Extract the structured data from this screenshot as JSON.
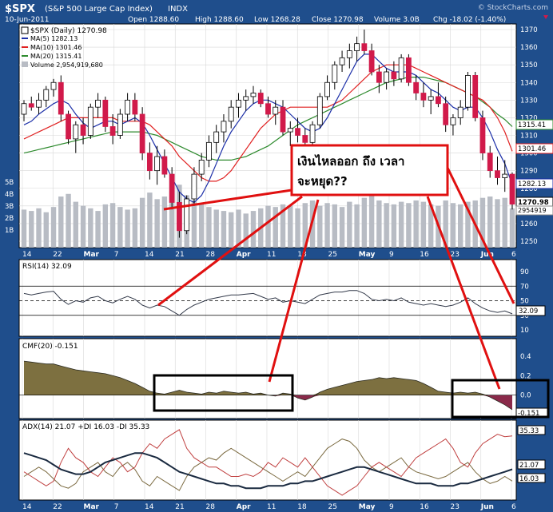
{
  "header": {
    "symbol": "$SPX",
    "name": "(S&P 500 Large Cap Index)",
    "exchange": "INDX",
    "watermark": "© StockCharts.com",
    "date": "10-Jun-2011",
    "open": "Open 1288.60",
    "high": "High 1288.60",
    "low": "Low 1268.28",
    "close": "Close 1270.98",
    "volume": "Volume 3.0B",
    "chg": "Chg -18.02 (-1.40%)"
  },
  "colors": {
    "frame": "#1f4e8c",
    "panel": "#ffffff",
    "up": "#ffffff",
    "down": "#d11a4a",
    "ma5": "#1c2fa8",
    "ma10": "#e02020",
    "ma20": "#2d8a2d",
    "volume": "#b8bcc4",
    "cmf": "#7d7040",
    "cmf_neg": "#8a2a4a",
    "adx": "#1a2a40",
    "plusdi": "#7b6a40",
    "minusdi": "#c04040",
    "annotation": "#e01010"
  },
  "main_legend": {
    "title": "$SPX (Daily) 1270.98",
    "ma5": "MA(5) 1282.13",
    "ma10": "MA(10) 1301.46",
    "ma20": "MA(20) 1315.41",
    "volume": "Volume 2,954,919,680"
  },
  "price_axis": [
    "1370",
    "1360",
    "1350",
    "1340",
    "1330",
    "1320",
    "1310",
    "1300",
    "1290",
    "1280",
    "1270",
    "1260",
    "1250"
  ],
  "volume_axis": [
    "5B",
    "4B",
    "3B",
    "2B",
    "1B"
  ],
  "price_badges": {
    "ma20": "1315.41",
    "ma10": "1301.46",
    "ma5": "1282.13",
    "close": "1270.98",
    "volume": "2954919"
  },
  "x_axis": [
    "14",
    "22",
    "Mar",
    "7",
    "14",
    "21",
    "28",
    "Apr",
    "11",
    "18",
    "25",
    "May",
    "9",
    "16",
    "23",
    "Jun",
    "6"
  ],
  "annotation": {
    "line1": "เงินไหลออก ถึง เวลา",
    "line2": "จะหยุด??"
  },
  "rsi": {
    "label": "RSI(14) 32.09",
    "axis": [
      "90",
      "70",
      "50",
      "30",
      "10"
    ],
    "badge": "32.09"
  },
  "cmf": {
    "label": "CMF(20) -0.151",
    "axis": [
      "0.4",
      "0.2",
      "0.0",
      "-0.2"
    ],
    "badge": "-0.151"
  },
  "adx": {
    "label": "ADX(14) 21.07 +DI 16.03 -DI 35.33",
    "axis": [
      "35.33",
      "21.07",
      "16.03"
    ]
  },
  "chart_data": {
    "type": "candlestick",
    "title": "$SPX (S&P 500 Large Cap Index) INDX",
    "x_ticks": [
      "14",
      "22",
      "Mar",
      "7",
      "14",
      "21",
      "28",
      "Apr",
      "11",
      "18",
      "25",
      "May",
      "9",
      "16",
      "23",
      "Jun",
      "6"
    ],
    "ohlc": [
      [
        1322,
        1330,
        1318,
        1328
      ],
      [
        1328,
        1332,
        1324,
        1326
      ],
      [
        1326,
        1334,
        1322,
        1330
      ],
      [
        1330,
        1338,
        1326,
        1336
      ],
      [
        1336,
        1342,
        1332,
        1340
      ],
      [
        1340,
        1344,
        1318,
        1322
      ],
      [
        1322,
        1324,
        1305,
        1308
      ],
      [
        1308,
        1318,
        1300,
        1316
      ],
      [
        1316,
        1320,
        1305,
        1310
      ],
      [
        1310,
        1328,
        1308,
        1326
      ],
      [
        1326,
        1334,
        1320,
        1330
      ],
      [
        1330,
        1332,
        1312,
        1315
      ],
      [
        1315,
        1322,
        1305,
        1310
      ],
      [
        1310,
        1325,
        1308,
        1322
      ],
      [
        1322,
        1334,
        1318,
        1330
      ],
      [
        1330,
        1334,
        1318,
        1322
      ],
      [
        1322,
        1326,
        1296,
        1300
      ],
      [
        1300,
        1306,
        1285,
        1290
      ],
      [
        1290,
        1304,
        1282,
        1298
      ],
      [
        1298,
        1302,
        1286,
        1288
      ],
      [
        1288,
        1292,
        1268,
        1272
      ],
      [
        1272,
        1278,
        1252,
        1256
      ],
      [
        1256,
        1276,
        1254,
        1274
      ],
      [
        1274,
        1292,
        1270,
        1288
      ],
      [
        1288,
        1300,
        1284,
        1296
      ],
      [
        1296,
        1310,
        1292,
        1306
      ],
      [
        1306,
        1316,
        1300,
        1312
      ],
      [
        1312,
        1322,
        1306,
        1318
      ],
      [
        1318,
        1330,
        1314,
        1326
      ],
      [
        1326,
        1334,
        1320,
        1330
      ],
      [
        1330,
        1336,
        1324,
        1332
      ],
      [
        1332,
        1338,
        1328,
        1334
      ],
      [
        1334,
        1336,
        1326,
        1328
      ],
      [
        1328,
        1332,
        1320,
        1322
      ],
      [
        1322,
        1330,
        1316,
        1326
      ],
      [
        1326,
        1330,
        1310,
        1312
      ],
      [
        1312,
        1318,
        1304,
        1314
      ],
      [
        1314,
        1320,
        1306,
        1310
      ],
      [
        1310,
        1314,
        1302,
        1306
      ],
      [
        1306,
        1318,
        1304,
        1316
      ],
      [
        1316,
        1334,
        1314,
        1332
      ],
      [
        1332,
        1344,
        1330,
        1340
      ],
      [
        1340,
        1352,
        1336,
        1350
      ],
      [
        1350,
        1358,
        1346,
        1354
      ],
      [
        1354,
        1362,
        1348,
        1358
      ],
      [
        1358,
        1366,
        1352,
        1362
      ],
      [
        1362,
        1370,
        1356,
        1358
      ],
      [
        1358,
        1362,
        1344,
        1346
      ],
      [
        1346,
        1350,
        1334,
        1340
      ],
      [
        1340,
        1348,
        1336,
        1346
      ],
      [
        1346,
        1352,
        1338,
        1342
      ],
      [
        1342,
        1356,
        1340,
        1354
      ],
      [
        1354,
        1356,
        1338,
        1340
      ],
      [
        1340,
        1344,
        1330,
        1334
      ],
      [
        1334,
        1340,
        1326,
        1330
      ],
      [
        1330,
        1336,
        1322,
        1332
      ],
      [
        1332,
        1340,
        1326,
        1328
      ],
      [
        1328,
        1332,
        1312,
        1316
      ],
      [
        1316,
        1322,
        1310,
        1320
      ],
      [
        1320,
        1330,
        1316,
        1326
      ],
      [
        1326,
        1346,
        1324,
        1344
      ],
      [
        1344,
        1346,
        1318,
        1320
      ],
      [
        1320,
        1324,
        1296,
        1300
      ],
      [
        1300,
        1304,
        1286,
        1290
      ],
      [
        1290,
        1298,
        1282,
        1286
      ],
      [
        1286,
        1296,
        1278,
        1288
      ],
      [
        1288,
        1289,
        1268,
        1271
      ]
    ],
    "ma5_values": [
      1316,
      1318,
      1322,
      1325,
      1328,
      1330,
      1328,
      1322,
      1317,
      1314,
      1316,
      1318,
      1318,
      1316,
      1318,
      1320,
      1317,
      1310,
      1302,
      1294,
      1286,
      1278,
      1274,
      1272,
      1276,
      1284,
      1294,
      1304,
      1312,
      1318,
      1324,
      1328,
      1330,
      1330,
      1328,
      1326,
      1322,
      1318,
      1314,
      1312,
      1314,
      1320,
      1328,
      1336,
      1344,
      1352,
      1356,
      1356,
      1352,
      1348,
      1346,
      1346,
      1346,
      1344,
      1340,
      1336,
      1334,
      1330,
      1326,
      1324,
      1326,
      1326,
      1320,
      1312,
      1302,
      1294,
      1282
    ],
    "ma10_values": [
      1308,
      1310,
      1312,
      1314,
      1316,
      1318,
      1320,
      1320,
      1320,
      1320,
      1320,
      1320,
      1320,
      1318,
      1318,
      1318,
      1318,
      1316,
      1312,
      1308,
      1304,
      1298,
      1294,
      1290,
      1286,
      1284,
      1284,
      1286,
      1290,
      1296,
      1302,
      1308,
      1314,
      1318,
      1322,
      1324,
      1326,
      1326,
      1326,
      1326,
      1326,
      1326,
      1328,
      1330,
      1334,
      1338,
      1342,
      1346,
      1348,
      1350,
      1350,
      1350,
      1350,
      1348,
      1346,
      1344,
      1342,
      1340,
      1338,
      1336,
      1334,
      1332,
      1330,
      1326,
      1320,
      1312,
      1301
    ],
    "ma20_values": [
      1300,
      1301,
      1302,
      1303,
      1304,
      1305,
      1306,
      1307,
      1308,
      1309,
      1310,
      1311,
      1312,
      1312,
      1312,
      1312,
      1312,
      1311,
      1310,
      1308,
      1306,
      1304,
      1302,
      1300,
      1298,
      1297,
      1296,
      1296,
      1296,
      1297,
      1298,
      1300,
      1302,
      1304,
      1307,
      1310,
      1313,
      1316,
      1318,
      1320,
      1322,
      1324,
      1326,
      1328,
      1330,
      1332,
      1334,
      1336,
      1338,
      1340,
      1341,
      1342,
      1343,
      1343,
      1343,
      1342,
      1341,
      1340,
      1338,
      1336,
      1334,
      1332,
      1329,
      1326,
      1322,
      1319,
      1315
    ],
    "volume_values": [
      2.9,
      2.8,
      3.0,
      2.7,
      3.1,
      3.9,
      4.1,
      3.5,
      3.2,
      3.0,
      2.8,
      3.3,
      3.4,
      3.1,
      2.9,
      3.0,
      3.8,
      4.2,
      3.7,
      3.9,
      4.3,
      4.8,
      4.0,
      3.6,
      3.3,
      3.1,
      2.9,
      2.8,
      2.7,
      2.9,
      2.6,
      2.8,
      3.0,
      3.2,
      3.1,
      3.3,
      3.2,
      3.0,
      3.4,
      3.6,
      3.2,
      3.4,
      3.3,
      3.1,
      3.5,
      3.3,
      3.8,
      4.0,
      3.6,
      3.4,
      3.3,
      3.5,
      3.4,
      3.6,
      3.5,
      3.3,
      3.2,
      3.6,
      3.4,
      3.3,
      3.5,
      3.6,
      3.8,
      3.9,
      3.7,
      3.8,
      3.0
    ],
    "rsi_values": [
      60,
      58,
      60,
      62,
      63,
      52,
      45,
      50,
      48,
      54,
      56,
      50,
      47,
      52,
      56,
      52,
      44,
      40,
      44,
      42,
      36,
      30,
      38,
      44,
      48,
      52,
      54,
      56,
      58,
      58,
      59,
      60,
      56,
      52,
      54,
      48,
      50,
      48,
      46,
      52,
      58,
      60,
      62,
      62,
      64,
      64,
      60,
      52,
      50,
      52,
      50,
      54,
      48,
      46,
      44,
      46,
      44,
      42,
      44,
      48,
      54,
      46,
      40,
      36,
      34,
      36,
      32
    ],
    "cmf_values": [
      0.35,
      0.34,
      0.33,
      0.32,
      0.32,
      0.3,
      0.28,
      0.26,
      0.25,
      0.24,
      0.23,
      0.22,
      0.2,
      0.18,
      0.15,
      0.12,
      0.08,
      0.04,
      0.02,
      0.01,
      0.03,
      0.05,
      0.03,
      0.02,
      0.01,
      0.03,
      0.02,
      0.04,
      0.03,
      0.02,
      0.03,
      0.01,
      0.02,
      0.0,
      -0.01,
      0.02,
      0.01,
      -0.03,
      -0.05,
      -0.02,
      0.03,
      0.06,
      0.08,
      0.1,
      0.12,
      0.14,
      0.15,
      0.16,
      0.18,
      0.17,
      0.18,
      0.17,
      0.16,
      0.15,
      0.12,
      0.08,
      0.04,
      0.03,
      0.02,
      0.03,
      0.02,
      0.03,
      0.01,
      -0.02,
      -0.06,
      -0.1,
      -0.15
    ],
    "adx_values": [
      28,
      27,
      26,
      25,
      23,
      21,
      20,
      19,
      19,
      20,
      22,
      24,
      25,
      26,
      27,
      28,
      28,
      27,
      26,
      24,
      22,
      20,
      19,
      18,
      17,
      16,
      15,
      15,
      14,
      14,
      13,
      13,
      13,
      14,
      14,
      14,
      15,
      15,
      16,
      16,
      17,
      18,
      19,
      20,
      21,
      22,
      22,
      21,
      20,
      19,
      18,
      17,
      16,
      15,
      15,
      15,
      14,
      14,
      14,
      15,
      15,
      16,
      17,
      18,
      19,
      20,
      21.07
    ],
    "plusdi_values": [
      18,
      20,
      22,
      20,
      17,
      14,
      13,
      15,
      20,
      22,
      24,
      20,
      18,
      22,
      24,
      21,
      16,
      14,
      18,
      16,
      14,
      12,
      18,
      22,
      24,
      26,
      25,
      28,
      30,
      28,
      26,
      24,
      22,
      20,
      18,
      16,
      18,
      20,
      18,
      22,
      26,
      30,
      32,
      34,
      33,
      30,
      25,
      22,
      20,
      22,
      24,
      26,
      22,
      20,
      19,
      18,
      17,
      18,
      20,
      22,
      24,
      20,
      17,
      15,
      16,
      18,
      16.03
    ],
    "minusdi_values": [
      20,
      18,
      16,
      14,
      16,
      24,
      30,
      26,
      24,
      20,
      18,
      22,
      26,
      24,
      20,
      22,
      28,
      32,
      30,
      34,
      36,
      38,
      30,
      26,
      24,
      22,
      22,
      20,
      18,
      18,
      19,
      18,
      20,
      24,
      22,
      26,
      24,
      22,
      26,
      22,
      18,
      14,
      12,
      10,
      12,
      14,
      18,
      22,
      24,
      22,
      20,
      18,
      22,
      26,
      28,
      30,
      32,
      34,
      30,
      24,
      22,
      28,
      32,
      34,
      36,
      35,
      35.33
    ]
  }
}
